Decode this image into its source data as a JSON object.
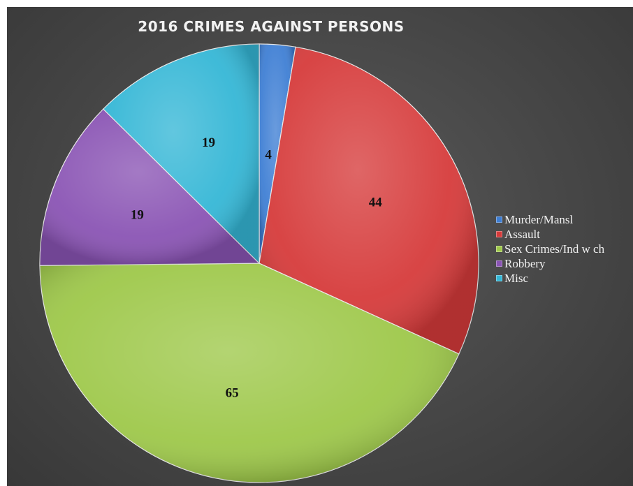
{
  "chart_data": {
    "type": "pie",
    "title": "2016 CRIMES AGAINST PERSONS",
    "slices": [
      {
        "label": "Murder/Mansl",
        "value": 4,
        "color": "#3f7fd4"
      },
      {
        "label": "Assault",
        "value": 44,
        "color": "#d63b3b"
      },
      {
        "label": "Sex Crimes/Ind w ch",
        "value": 65,
        "color": "#9ec84a"
      },
      {
        "label": "Robbery",
        "value": 19,
        "color": "#8a54b4"
      },
      {
        "label": "Misc",
        "value": 19,
        "color": "#35b7d6"
      }
    ],
    "data_labels": true,
    "legend_position": "right"
  }
}
